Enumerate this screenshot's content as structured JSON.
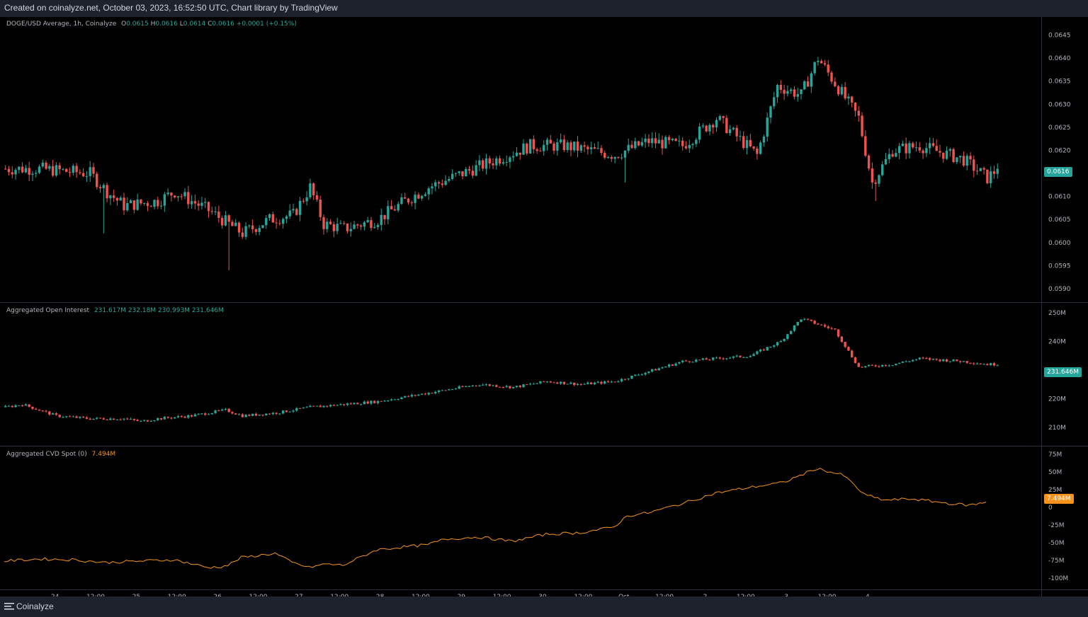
{
  "header": {
    "text": "Created on coinalyze.net, October 03, 2023, 16:52:50 UTC, Chart library by TradingView"
  },
  "footer": {
    "brand": "Coinalyze",
    "icon": "menu-lines-icon"
  },
  "colors": {
    "up": "#26a69a",
    "down": "#ef5350",
    "cvd": "#f7931a",
    "panel_border": "#2a2e39",
    "axis_text": "#b2b5be"
  },
  "price_legend": {
    "title": "DOGE/USD Average, 1h, Coinalyze",
    "o_label": "O",
    "o_value": "0.0615",
    "h_label": "H",
    "h_value": "0.0616",
    "l_label": "L",
    "l_value": "0.0614",
    "c_label": "C",
    "c_value": "0.0616",
    "change": "+0.0001 (+0.15%)"
  },
  "oi_legend": {
    "title": "Aggregated Open Interest",
    "v1": "231.617M",
    "v2": "232.18M",
    "v3": "230.993M",
    "v4": "231.646M"
  },
  "cvd_legend": {
    "title": "Aggregated CVD Spot (0)",
    "value": "7.494M"
  },
  "badges": {
    "price": "0.0616",
    "oi": "231.646M",
    "cvd": "7.494M"
  },
  "chart_data": [
    {
      "type": "candlestick",
      "title": "DOGE/USD Average, 1h, Coinalyze",
      "ylim": [
        0.0588,
        0.0648
      ],
      "y_ticks": [
        "0.0645",
        "0.0640",
        "0.0635",
        "0.0630",
        "0.0625",
        "0.0620",
        "0.0615",
        "0.0610",
        "0.0605",
        "0.0600",
        "0.0595",
        "0.0590"
      ],
      "y_tick_values": [
        0.0645,
        0.064,
        0.0635,
        0.063,
        0.0625,
        0.062,
        0.0615,
        0.061,
        0.0605,
        0.06,
        0.0595,
        0.059
      ],
      "last": 0.0616,
      "anchors": [
        [
          0,
          0.0616
        ],
        [
          10,
          0.0616
        ],
        [
          25,
          0.0615
        ],
        [
          30,
          0.0611
        ],
        [
          35,
          0.0608
        ],
        [
          45,
          0.0609
        ],
        [
          50,
          0.0611
        ],
        [
          60,
          0.0607
        ],
        [
          70,
          0.0602
        ],
        [
          78,
          0.0605
        ],
        [
          85,
          0.0606
        ],
        [
          90,
          0.0612
        ],
        [
          94,
          0.0604
        ],
        [
          100,
          0.0603
        ],
        [
          110,
          0.0605
        ],
        [
          118,
          0.0609
        ],
        [
          125,
          0.0612
        ],
        [
          135,
          0.0615
        ],
        [
          145,
          0.0618
        ],
        [
          155,
          0.0621
        ],
        [
          165,
          0.0621
        ],
        [
          180,
          0.0619
        ],
        [
          190,
          0.0622
        ],
        [
          200,
          0.0621
        ],
        [
          210,
          0.0627
        ],
        [
          222,
          0.0619
        ],
        [
          228,
          0.0634
        ],
        [
          235,
          0.0632
        ],
        [
          240,
          0.064
        ],
        [
          252,
          0.0627
        ],
        [
          256,
          0.0613
        ],
        [
          262,
          0.062
        ],
        [
          270,
          0.0621
        ],
        [
          283,
          0.0618
        ],
        [
          290,
          0.0614
        ],
        [
          293,
          0.0616
        ]
      ],
      "spikes": [
        [
          29,
          0.0602
        ],
        [
          66,
          0.0594
        ],
        [
          183,
          0.0613
        ],
        [
          257,
          0.0609
        ]
      ]
    },
    {
      "type": "candlestick",
      "title": "Aggregated Open Interest",
      "ylim": [
        205,
        252
      ],
      "y_ticks": [
        "250M",
        "240M",
        "230M",
        "220M",
        "210M"
      ],
      "y_tick_values": [
        250,
        240,
        230,
        220,
        210
      ],
      "last": 231.646,
      "anchors": [
        [
          0,
          217
        ],
        [
          5,
          218
        ],
        [
          10,
          216
        ],
        [
          15,
          214
        ],
        [
          25,
          213
        ],
        [
          35,
          213
        ],
        [
          40,
          212
        ],
        [
          45,
          213
        ],
        [
          55,
          214
        ],
        [
          60,
          215
        ],
        [
          65,
          216
        ],
        [
          70,
          214
        ],
        [
          80,
          215
        ],
        [
          90,
          217
        ],
        [
          100,
          218
        ],
        [
          110,
          219
        ],
        [
          120,
          221
        ],
        [
          130,
          223
        ],
        [
          140,
          225
        ],
        [
          150,
          224
        ],
        [
          160,
          226
        ],
        [
          170,
          225
        ],
        [
          180,
          226
        ],
        [
          200,
          233
        ],
        [
          220,
          235
        ],
        [
          229,
          240
        ],
        [
          235,
          248
        ],
        [
          245,
          244
        ],
        [
          252,
          231
        ],
        [
          262,
          232
        ],
        [
          270,
          234
        ],
        [
          283,
          233
        ],
        [
          290,
          232
        ],
        [
          293,
          232
        ]
      ]
    },
    {
      "type": "line",
      "title": "Aggregated CVD Spot (0)",
      "ylim": [
        -110,
        80
      ],
      "y_ticks": [
        "75M",
        "50M",
        "25M",
        "0",
        "-25M",
        "-50M",
        "-75M",
        "-100M"
      ],
      "y_tick_values": [
        75,
        50,
        25,
        0,
        -25,
        -50,
        -75,
        -100
      ],
      "last": 7.494,
      "anchors": [
        [
          0,
          -76
        ],
        [
          10,
          -73
        ],
        [
          20,
          -74
        ],
        [
          30,
          -78
        ],
        [
          40,
          -76
        ],
        [
          50,
          -74
        ],
        [
          60,
          -85
        ],
        [
          64,
          -84
        ],
        [
          66,
          -82
        ],
        [
          70,
          -71
        ],
        [
          75,
          -68
        ],
        [
          80,
          -65
        ],
        [
          85,
          -78
        ],
        [
          90,
          -85
        ],
        [
          95,
          -80
        ],
        [
          100,
          -82
        ],
        [
          110,
          -60
        ],
        [
          120,
          -55
        ],
        [
          125,
          -53
        ],
        [
          130,
          -45
        ],
        [
          140,
          -42
        ],
        [
          150,
          -48
        ],
        [
          160,
          -38
        ],
        [
          170,
          -36
        ],
        [
          180,
          -28
        ],
        [
          184,
          -12
        ],
        [
          190,
          -8
        ],
        [
          200,
          5
        ],
        [
          210,
          20
        ],
        [
          220,
          28
        ],
        [
          230,
          35
        ],
        [
          240,
          55
        ],
        [
          248,
          45
        ],
        [
          254,
          18
        ],
        [
          260,
          10
        ],
        [
          268,
          12
        ],
        [
          280,
          5
        ],
        [
          285,
          3
        ],
        [
          290,
          7
        ]
      ]
    }
  ],
  "x_axis": {
    "labels": [
      "24",
      "12:00",
      "25",
      "12:00",
      "26",
      "12:00",
      "27",
      "12:00",
      "28",
      "12:00",
      "29",
      "12:00",
      "30",
      "12:00",
      "Oct",
      "12:00",
      "2",
      "12:00",
      "3",
      "12:00",
      "4"
    ],
    "label_hours": [
      0,
      12,
      24,
      36,
      48,
      60,
      72,
      84,
      96,
      108,
      120,
      132,
      144,
      156,
      168,
      180,
      192,
      204,
      216,
      228,
      240
    ],
    "first_hour_offset": -15
  }
}
